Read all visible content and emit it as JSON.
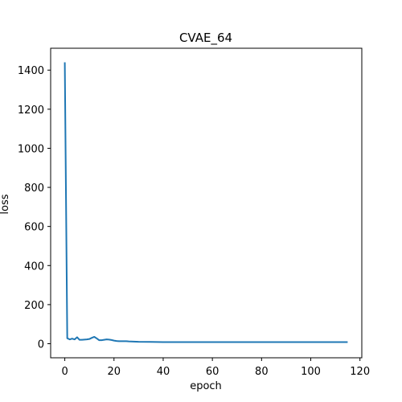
{
  "chart_data": {
    "type": "line",
    "title": "CVAE_64",
    "xlabel": "epoch",
    "ylabel": "loss",
    "xlim": [
      -5.75,
      120.75
    ],
    "ylim": [
      -72,
      1512
    ],
    "xticks": [
      0,
      20,
      40,
      60,
      80,
      100,
      120
    ],
    "yticks": [
      0,
      200,
      400,
      600,
      800,
      1000,
      1200,
      1400
    ],
    "grid": false,
    "legend": "none",
    "line_color": "#1f77b4",
    "series": [
      {
        "x": [
          0,
          1,
          2,
          3,
          4,
          5,
          6,
          7,
          8,
          9,
          10,
          11,
          12,
          13,
          14,
          15,
          16,
          17,
          18,
          19,
          20,
          21,
          22,
          23,
          24,
          25,
          26,
          28,
          30,
          35,
          40,
          50,
          60,
          70,
          80,
          90,
          100,
          110,
          115
        ],
        "values": [
          1440,
          28,
          22,
          26,
          22,
          33,
          20,
          20,
          21,
          22,
          24,
          30,
          35,
          27,
          18,
          18,
          20,
          22,
          21,
          19,
          16,
          14,
          13,
          13,
          13,
          13,
          12,
          11,
          10,
          9,
          8,
          8,
          8,
          8,
          8,
          8,
          8,
          8,
          8
        ]
      }
    ]
  }
}
